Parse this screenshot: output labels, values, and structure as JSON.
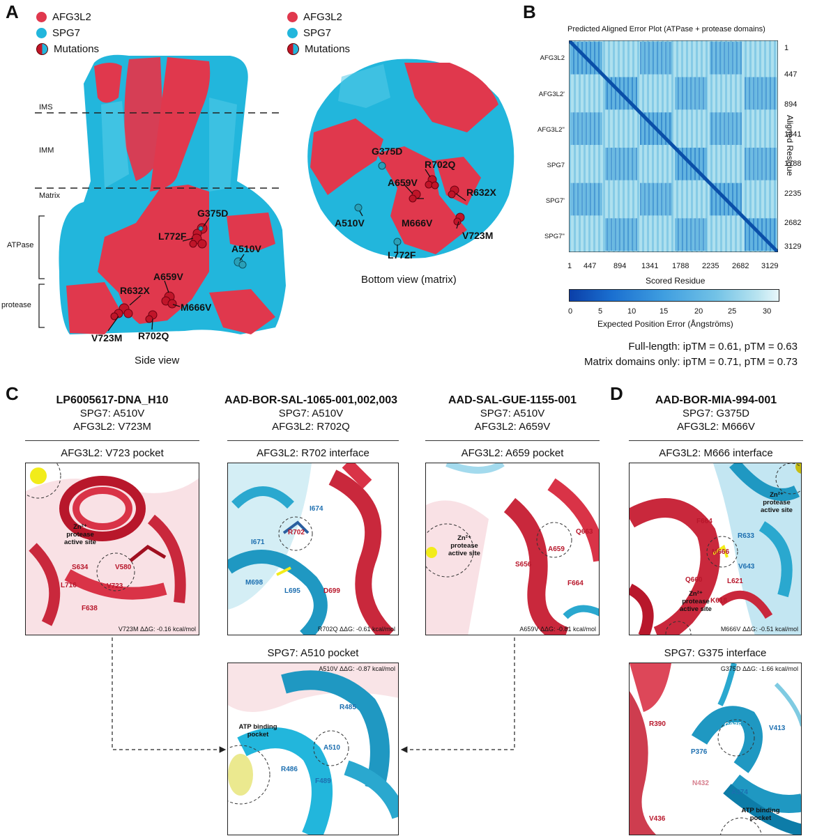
{
  "panels": {
    "A": "A",
    "B": "B",
    "C": "C",
    "D": "D"
  },
  "colors": {
    "afg3l2": "#e0384d",
    "spg7": "#22b6dc",
    "mut_red": "#c01529",
    "mut_blue": "#2aa0b8"
  },
  "legend": [
    {
      "label": "AFG3L2",
      "color": "#e0384d",
      "icon": "red-dot-icon"
    },
    {
      "label": "SPG7",
      "color": "#22b6dc",
      "icon": "cyan-dot-icon"
    },
    {
      "label": "Mutations",
      "color": "split",
      "icon": "split-dot-icon"
    }
  ],
  "side_view": {
    "caption": "Side view",
    "regions": [
      "IMS",
      "IMM",
      "Matrix",
      "ATPase",
      "protease"
    ],
    "mutations": [
      "G375D",
      "L772F",
      "A510V",
      "A659V",
      "R632X",
      "M666V",
      "V723M",
      "R702Q"
    ]
  },
  "bottom_view": {
    "caption": "Bottom view (matrix)",
    "mutations": [
      "G375D",
      "R702Q",
      "A659V",
      "R632X",
      "A510V",
      "M666V",
      "V723M",
      "L772F"
    ]
  },
  "pae": {
    "title": "Predicted Aligned Error Plot (ATPase + protease domains)",
    "row_labels": [
      "AFG3L2",
      "AFG3L2'",
      "AFG3L2''",
      "SPG7",
      "SPG7'",
      "SPG7''"
    ],
    "ticks": [
      "1",
      "447",
      "894",
      "1341",
      "1788",
      "2235",
      "2682",
      "3129"
    ],
    "x_label": "Scored Residue",
    "y_label": "Aligned Residue",
    "colorbar_ticks": [
      "0",
      "5",
      "10",
      "15",
      "20",
      "25",
      "30"
    ],
    "colorbar_label": "Expected Position Error (Ångströms)",
    "stats": [
      "Full-length: ipTM = 0.61, pTM = 0.63",
      "Matrix domains only: ipTM = 0.71, pTM = 0.73"
    ]
  },
  "samples": [
    {
      "id": "LP6005617-DNA_H10",
      "spg7": "SPG7: A510V",
      "afg3l2": "AFG3L2: V723M"
    },
    {
      "id": "AAD-BOR-SAL-1065-001,002,003",
      "spg7": "SPG7: A510V",
      "afg3l2": "AFG3L2: R702Q"
    },
    {
      "id": "AAD-SAL-GUE-1155-001",
      "spg7": "SPG7: A510V",
      "afg3l2": "AFG3L2: A659V"
    },
    {
      "id": "AAD-BOR-MIA-994-001",
      "spg7": "SPG7: G375D",
      "afg3l2": "AFG3L2: M666V"
    }
  ],
  "boxes": {
    "v723": {
      "title": "AFG3L2: V723 pocket",
      "ddg": "V723M ΔΔG: -0.16 kcal/mol",
      "site": [
        "Zn²⁺",
        "protease",
        "active site"
      ],
      "residues": [
        "S634",
        "V580",
        "L716",
        "V723",
        "F638"
      ]
    },
    "r702": {
      "title": "AFG3L2: R702 interface",
      "ddg": "R702Q ΔΔG: -0.61 kcal/mol",
      "residues": [
        "I674",
        "I671",
        "R702",
        "M698",
        "L695",
        "D699"
      ]
    },
    "a659": {
      "title": "AFG3L2: A659 pocket",
      "ddg": "A659V ΔΔG: -0.81 kcal/mol",
      "site": [
        "Zn²⁺",
        "protease",
        "active site"
      ],
      "residues": [
        "Q663",
        "A659",
        "S656",
        "F664"
      ]
    },
    "a510": {
      "title": "SPG7: A510 pocket",
      "ddg": "A510V ΔΔG: -0.87 kcal/mol",
      "site": [
        "ATP binding",
        "pocket"
      ],
      "residues": [
        "R485",
        "A510",
        "R486",
        "F489"
      ]
    },
    "m666": {
      "title": "AFG3L2: M666 interface",
      "ddg": "M666V ΔΔG: -0.51 kcal/mol",
      "site": [
        "Zn²⁺",
        "protease",
        "active site"
      ],
      "site2": [
        "Zn²⁺",
        "protease",
        "active site"
      ],
      "residues": [
        "F664",
        "R633",
        "M666",
        "V643",
        "Q660",
        "L621",
        "K618"
      ]
    },
    "g375": {
      "title": "SPG7: G375 interface",
      "ddg": "G375D ΔΔG: -1.66 kcal/mol",
      "site": [
        "ATP binding",
        "pocket"
      ],
      "residues": [
        "R390",
        "G375",
        "V413",
        "P376",
        "N432",
        "A374",
        "V436"
      ]
    }
  }
}
